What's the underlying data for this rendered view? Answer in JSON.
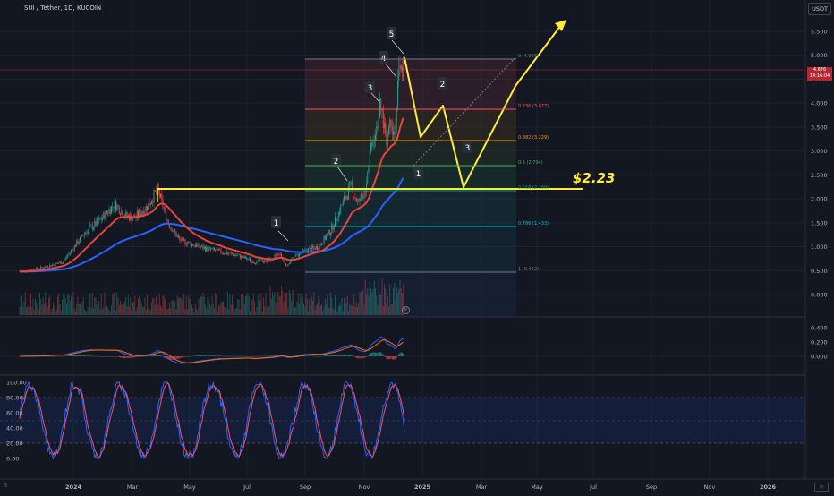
{
  "header": {
    "symbol_title": "SUI / Tether, 1D, KUCOIN",
    "currency": "USDT"
  },
  "price_tag": {
    "price": "4.676",
    "countdown": "14:16:04"
  },
  "colors": {
    "background": "#131722",
    "up": "#26a69a",
    "down": "#ef5350",
    "ema_short": "#e8453c",
    "ema_long": "#2962ff",
    "annotation": "#ffeb3b",
    "macd": "#2962ff",
    "signal": "#ff6d00",
    "stoch_k": "#2962ff",
    "stoch_d": "#f7525f"
  },
  "price_axis": {
    "ticks": [
      "5.500",
      "5.000",
      "4.500",
      "4.000",
      "3.500",
      "3.000",
      "2.500",
      "2.000",
      "1.500",
      "1.000",
      "0.500",
      "0.000"
    ]
  },
  "macd_axis": {
    "ticks": [
      "0.400",
      "0.200",
      "0.000"
    ]
  },
  "stoch_axis": {
    "ticks": [
      "100.00",
      "80.00",
      "60.00",
      "40.00",
      "20.00",
      "0.00"
    ]
  },
  "time_axis": {
    "ticks": [
      "2024",
      "Mar",
      "May",
      "Jul",
      "Sep",
      "Nov",
      "2025",
      "Mar",
      "May",
      "Jul",
      "Sep",
      "Nov",
      "2026"
    ],
    "left_cutoff": "5"
  },
  "fib_levels": [
    {
      "ratio": "0",
      "price": "4.926",
      "label": "0 (4.926)",
      "color": "#787b86"
    },
    {
      "ratio": "0.236",
      "price": "3.877",
      "label": "0.236 (3.877)",
      "color": "#f7525f"
    },
    {
      "ratio": "0.382",
      "price": "3.229",
      "label": "0.382 (3.229)",
      "color": "#ff9800"
    },
    {
      "ratio": "0.5",
      "price": "2.704",
      "label": "0.5 (2.704)",
      "color": "#4caf50"
    },
    {
      "ratio": "0.618",
      "price": "2.180",
      "label": "0.618 (2.180)",
      "color": "#089981"
    },
    {
      "ratio": "0.786",
      "price": "1.433",
      "label": "0.786 (1.433)",
      "color": "#00bcd4"
    },
    {
      "ratio": "1",
      "price": "0.482",
      "label": "1 (0.482)",
      "color": "#787b86"
    }
  ],
  "annotations": {
    "support_price": "$2.23",
    "wave_labels": [
      "1",
      "2",
      "3",
      "4",
      "5",
      "1",
      "2",
      "3"
    ]
  },
  "icons": {
    "settings": "gear-icon",
    "timezone": "clock-icon"
  }
}
